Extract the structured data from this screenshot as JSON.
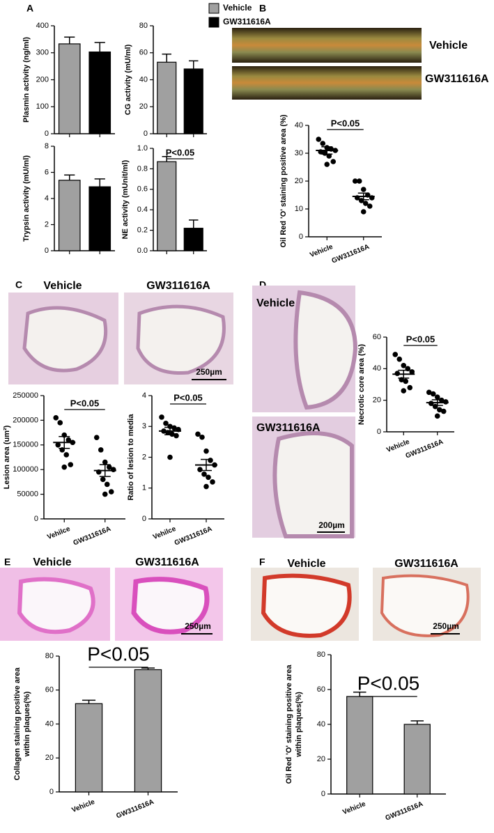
{
  "panels": [
    {
      "letter": "A"
    },
    {
      "letter": "B",
      "labels": [
        "Vehicle",
        "GW311616A"
      ]
    },
    {
      "letter": "C",
      "labels": [
        "Vehicle",
        "GW311616A",
        "250µm"
      ]
    },
    {
      "letter": "D",
      "labels": [
        "Vehicle",
        "GW311616A",
        "200µm"
      ]
    },
    {
      "letter": "E",
      "labels": [
        "Vehicle",
        "GW311616A",
        "250µm"
      ]
    },
    {
      "letter": "F",
      "labels": [
        "Vehicle",
        "GW311616A",
        "250µm"
      ]
    }
  ],
  "chart_data": [
    {
      "type": "bar",
      "ylabel": "Plasmin activity (ng/ml)",
      "categories": [
        null,
        null
      ],
      "values": [
        333,
        303
      ],
      "errors": [
        25,
        35
      ],
      "colors": [
        "#a0a0a0",
        "#000000"
      ],
      "ylim": [
        0,
        400
      ],
      "yticks": [
        0,
        100,
        200,
        300,
        400
      ]
    },
    {
      "type": "bar",
      "ylabel": "CG activity (mU/ml)",
      "categories": [
        null,
        null
      ],
      "values": [
        53,
        48
      ],
      "errors": [
        6,
        6
      ],
      "colors": [
        "#a0a0a0",
        "#000000"
      ],
      "ylim": [
        0,
        80
      ],
      "yticks": [
        0,
        20,
        40,
        60,
        80
      ],
      "legend": [
        {
          "name": "Vehicle",
          "color": "#a0a0a0"
        },
        {
          "name": "GW311616A",
          "color": "#000000"
        }
      ]
    },
    {
      "type": "bar",
      "ylabel": "Trypsin activity (mU/ml)",
      "categories": [
        null,
        null
      ],
      "values": [
        5.4,
        4.9
      ],
      "errors": [
        0.4,
        0.6
      ],
      "colors": [
        "#a0a0a0",
        "#000000"
      ],
      "ylim": [
        0,
        8
      ],
      "yticks": [
        0,
        2,
        4,
        6,
        8
      ]
    },
    {
      "type": "bar",
      "ylabel": "NE activity (mUnit/ml)",
      "categories": [
        null,
        null
      ],
      "values": [
        0.87,
        0.22
      ],
      "errors": [
        0.05,
        0.08
      ],
      "colors": [
        "#a0a0a0",
        "#000000"
      ],
      "ylim": [
        0,
        1
      ],
      "yticks": [
        {
          "value": 0,
          "label": "0.0"
        },
        0.2,
        0.4,
        0.6,
        0.8,
        {
          "value": 1,
          "label": "1.0"
        }
      ],
      "annotation": "P<0.05"
    },
    {
      "type": "dot",
      "ylabel": "Oil Red 'O' staining positive area (%)",
      "categories": [
        "Vehicle",
        "GW311616A"
      ],
      "groups": [
        {
          "values": [
            35,
            33.5,
            32,
            31.5,
            31,
            30.5,
            30,
            29,
            27,
            26
          ],
          "mean": 31,
          "sem": 1.3
        },
        {
          "values": [
            20,
            20,
            17,
            15,
            14,
            14,
            13,
            12,
            11,
            9
          ],
          "mean": 14.5,
          "sem": 1.2
        }
      ],
      "ylim": [
        0,
        40
      ],
      "yticks": [
        0,
        10,
        20,
        30,
        40
      ],
      "annotation": "P<0.05"
    },
    {
      "type": "dot",
      "ylabel": "Lesion area (um²)",
      "categories": [
        "Vehilce",
        "GW311616A"
      ],
      "groups": [
        {
          "values": [
            205000,
            195000,
            170000,
            160000,
            155000,
            150000,
            140000,
            130000,
            110000,
            105000
          ],
          "mean": 155000,
          "sem": 12000
        },
        {
          "values": [
            165000,
            140000,
            115000,
            105000,
            100000,
            95000,
            80000,
            70000,
            55000,
            50000
          ],
          "mean": 98000,
          "sem": 12000
        }
      ],
      "ylim": [
        0,
        250000
      ],
      "yticks": [
        0,
        50000,
        100000,
        150000,
        200000,
        250000
      ],
      "annotation": "P<0.05"
    },
    {
      "type": "dot",
      "ylabel": "Ratio of lesion to media",
      "categories": [
        "Vehilce",
        "GW311616A"
      ],
      "groups": [
        {
          "values": [
            3.3,
            3.1,
            3.0,
            2.95,
            2.9,
            2.85,
            2.8,
            2.75,
            2.7,
            2.0
          ],
          "mean": 2.85,
          "sem": 0.12
        },
        {
          "values": [
            2.75,
            2.65,
            2.2,
            1.9,
            1.75,
            1.6,
            1.45,
            1.35,
            1.2,
            1.05
          ],
          "mean": 1.75,
          "sem": 0.18
        }
      ],
      "ylim": [
        0,
        4
      ],
      "yticks": [
        0,
        1,
        2,
        3,
        4
      ],
      "annotation": "P<0.05"
    },
    {
      "type": "dot",
      "ylabel": "Necrotic core area (%)",
      "categories": [
        "Vehicle",
        "GW311616A"
      ],
      "groups": [
        {
          "values": [
            49,
            46,
            42,
            40,
            38,
            37,
            33,
            32,
            28,
            26
          ],
          "mean": 36.5,
          "sem": 2.5
        },
        {
          "values": [
            25,
            24,
            22,
            20,
            19,
            18,
            16,
            14,
            13,
            10
          ],
          "mean": 18.5,
          "sem": 1.8
        }
      ],
      "ylim": [
        0,
        60
      ],
      "yticks": [
        0,
        20,
        40,
        60
      ],
      "annotation": "P<0.05"
    },
    {
      "type": "bar",
      "ylabel": [
        "Collagen staining positive area",
        "within plaques(%)"
      ],
      "categories": [
        "Vehicle",
        "GW311616A"
      ],
      "values": [
        52,
        72
      ],
      "errors": [
        2,
        1
      ],
      "colors": [
        "#a0a0a0",
        "#a0a0a0"
      ],
      "ylim": [
        0,
        80
      ],
      "yticks": [
        0,
        20,
        40,
        60,
        80
      ],
      "annotation": "P<0.05"
    },
    {
      "type": "bar",
      "ylabel": [
        "Oil Red 'O' staining positive area",
        "within plaques(%)"
      ],
      "categories": [
        "Vehicle",
        "GW311616A"
      ],
      "values": [
        56,
        40
      ],
      "errors": [
        2.5,
        2
      ],
      "colors": [
        "#a0a0a0",
        "#a0a0a0"
      ],
      "ylim": [
        0,
        80
      ],
      "yticks": [
        0,
        20,
        40,
        60,
        80
      ],
      "annotation": "P<0.05"
    }
  ]
}
